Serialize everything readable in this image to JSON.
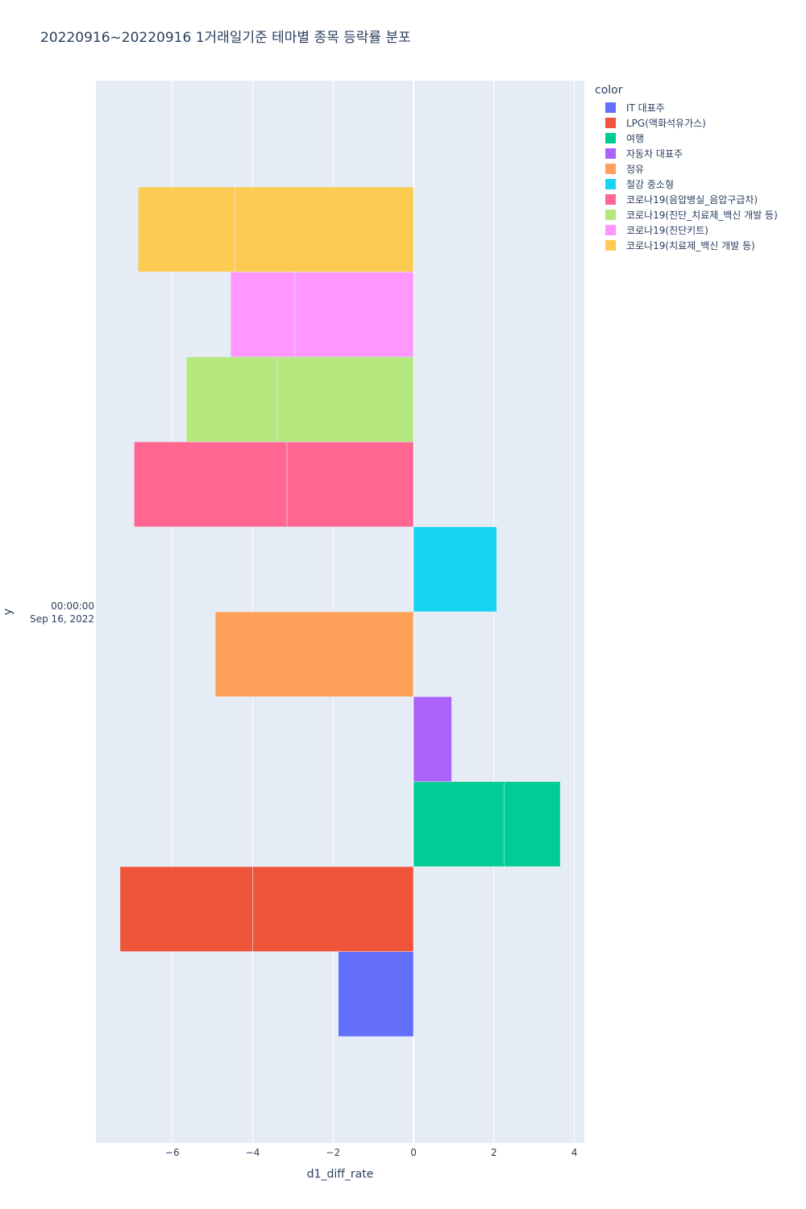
{
  "chart_data": {
    "type": "bar",
    "orientation": "horizontal",
    "barmode": "relative",
    "title": "20220916~20220916 1거래일기준 테마별 종목 등락률 분포",
    "xlabel": "d1_diff_rate",
    "ylabel": "y",
    "y_tick_label_line1": "00:00:00",
    "y_tick_label_line2": "Sep 16, 2022",
    "xlim": [
      -7.9,
      4.25
    ],
    "x_ticks": [
      {
        "value": -6,
        "label": "−6"
      },
      {
        "value": -4,
        "label": "−4"
      },
      {
        "value": -2,
        "label": "−2"
      },
      {
        "value": 0,
        "label": "0"
      },
      {
        "value": 2,
        "label": "2"
      },
      {
        "value": 4,
        "label": "4"
      }
    ],
    "grid": true,
    "legend_title": "color",
    "legend_position": "right",
    "series": [
      {
        "name": "IT 대표주",
        "color": "#636efa",
        "segments": [
          -1.87
        ]
      },
      {
        "name": "LPG(액화석유가스)",
        "color": "#EF553B",
        "segments": [
          -4.0,
          -3.3
        ]
      },
      {
        "name": "여행",
        "color": "#00cc96",
        "segments": [
          2.25,
          1.4
        ]
      },
      {
        "name": "자동차 대표주",
        "color": "#ab63fa",
        "segments": [
          0.95
        ]
      },
      {
        "name": "정유",
        "color": "#FFA15A",
        "segments": [
          -4.93
        ]
      },
      {
        "name": "철강 중소형",
        "color": "#19d3f3",
        "segments": [
          2.07
        ]
      },
      {
        "name": "코로나19(음압병실_음압구급차)",
        "color": "#FF6692",
        "segments": [
          -3.15,
          -3.8
        ]
      },
      {
        "name": "코로나19(진단_치료제_백신 개발 등)",
        "color": "#B6E880",
        "segments": [
          -3.4,
          -2.25
        ]
      },
      {
        "name": "코로나19(진단키트)",
        "color": "#FF97FF",
        "segments": [
          -2.95,
          -1.6
        ]
      },
      {
        "name": "코로나19(치료제_백신 개발 등)",
        "color": "#FECB52",
        "segments": [
          -4.45,
          -2.4
        ]
      }
    ]
  }
}
